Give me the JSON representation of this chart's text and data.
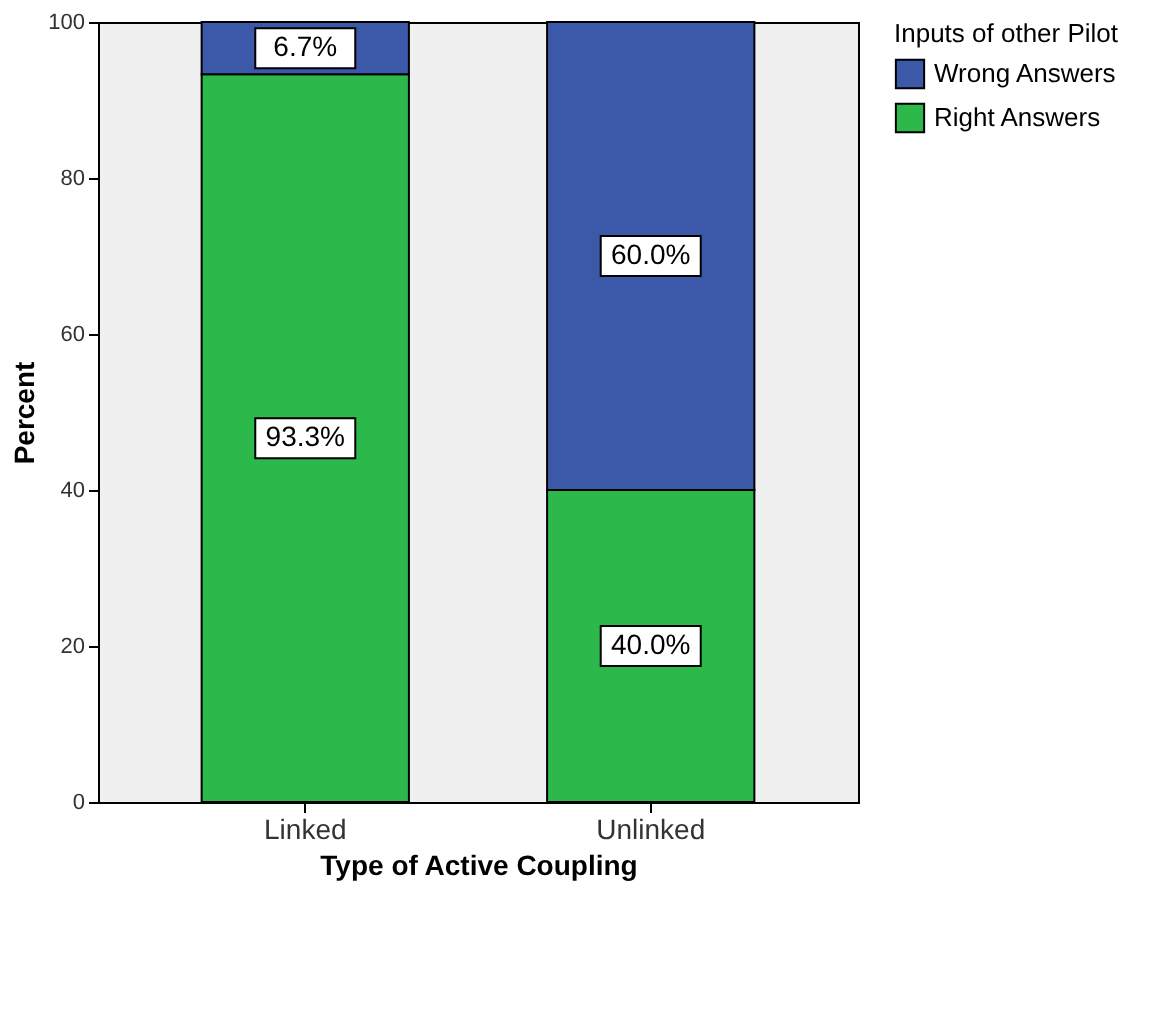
{
  "chart_data": {
    "type": "bar",
    "stacked": true,
    "xlabel": "Type of Active Coupling",
    "ylabel": "Percent",
    "legend_title": "Inputs of other Pilot",
    "legend": "top right",
    "categories": [
      "Linked",
      "Unlinked"
    ],
    "series": [
      {
        "name": "Right Answers",
        "color": "#2db84b",
        "values": [
          93.3,
          40.0
        ],
        "value_labels": [
          "93.3%",
          "40.0%"
        ]
      },
      {
        "name": "Wrong Answers",
        "color": "#3c58a8",
        "values": [
          6.7,
          60.0
        ],
        "value_labels": [
          "6.7%",
          "60.0%"
        ]
      }
    ],
    "ylim": [
      0,
      100
    ],
    "yticks": [
      0,
      20,
      40,
      60,
      80,
      100
    ],
    "grid": false
  }
}
